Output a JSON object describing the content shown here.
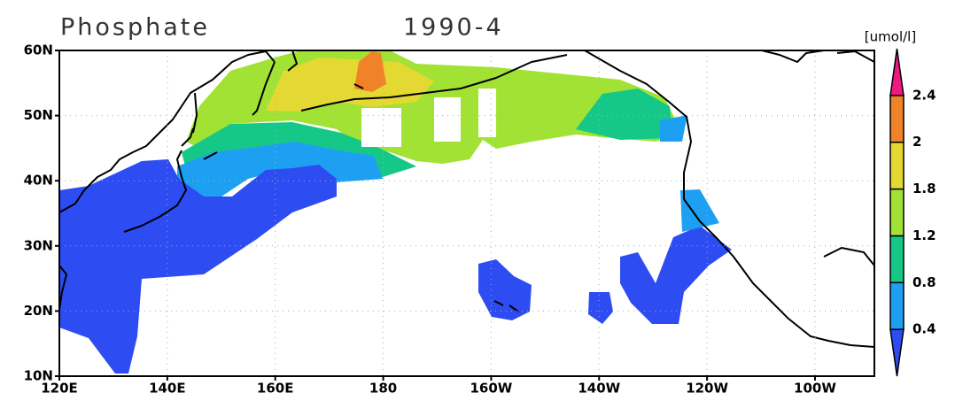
{
  "map": {
    "title": "Phosphate",
    "period": "1990-4",
    "unit": "[umol/l]",
    "lon_range": [
      120,
      271
    ],
    "lat_range": [
      10,
      60
    ],
    "lat_ticks": [
      {
        "value": 60,
        "label": "60N"
      },
      {
        "value": 50,
        "label": "50N"
      },
      {
        "value": 40,
        "label": "40N"
      },
      {
        "value": 30,
        "label": "30N"
      },
      {
        "value": 20,
        "label": "20N"
      },
      {
        "value": 10,
        "label": "10N"
      }
    ],
    "lon_ticks": [
      {
        "value": 120,
        "label": "120E"
      },
      {
        "value": 140,
        "label": "140E"
      },
      {
        "value": 160,
        "label": "160E"
      },
      {
        "value": 180,
        "label": "180"
      },
      {
        "value": 200,
        "label": "160W"
      },
      {
        "value": 220,
        "label": "140W"
      },
      {
        "value": 240,
        "label": "120W"
      },
      {
        "value": 260,
        "label": "100W"
      }
    ],
    "grid": true,
    "colorbar": {
      "levels": [
        0.4,
        0.8,
        1.2,
        1.8,
        2,
        2.4
      ],
      "colors": [
        "#2d4cf2",
        "#1ea0f2",
        "#16c887",
        "#a2e234",
        "#e4d832",
        "#f08228",
        "#ee1a82"
      ]
    }
  }
}
